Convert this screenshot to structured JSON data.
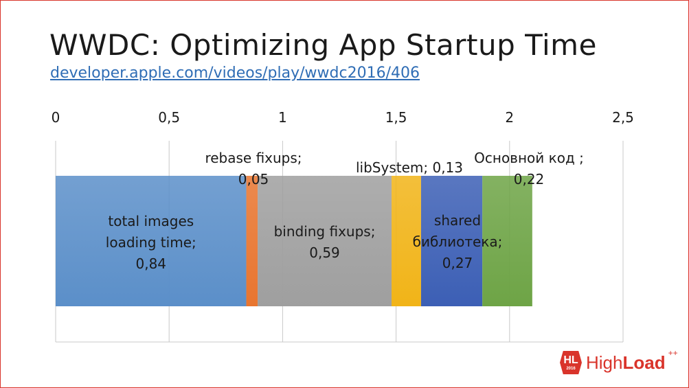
{
  "slide": {
    "title": "WWDC: Optimizing App Startup Time",
    "link": "developer.apple.com/videos/play/wwdc2016/406"
  },
  "chart_data": {
    "type": "bar",
    "orientation": "horizontal-stacked",
    "xlim": [
      0,
      2.5
    ],
    "x_ticks": [
      "0",
      "0,5",
      "1",
      "1,5",
      "2",
      "2,5"
    ],
    "grid": true,
    "series": [
      {
        "name": "total images loading time",
        "value": 0.84,
        "label_lines": [
          "total images",
          "loading time;",
          "0,84"
        ],
        "color": "#5b8fc9"
      },
      {
        "name": "rebase fixups",
        "value": 0.05,
        "label_lines": [
          "rebase fixups;",
          "0,05"
        ],
        "color": "#e8752f"
      },
      {
        "name": "binding fixups",
        "value": 0.59,
        "label_lines": [
          "binding fixups;",
          "0,59"
        ],
        "color": "#9f9f9f"
      },
      {
        "name": "libSystem",
        "value": 0.13,
        "label_lines": [
          "libSystem; 0,13"
        ],
        "color": "#f1b418"
      },
      {
        "name": "shared библиотека",
        "value": 0.27,
        "label_lines": [
          "shared",
          "библиотека;",
          "0,27"
        ],
        "color": "#3c5fb5"
      },
      {
        "name": "Основной код ",
        "value": 0.22,
        "label_lines": [
          "Основной код ;",
          "0,22"
        ],
        "color": "#6ea446"
      }
    ]
  },
  "logo": {
    "badge": "HL",
    "year": "2016",
    "text_light": "High",
    "text_bold": "Load",
    "superscript": "++"
  }
}
